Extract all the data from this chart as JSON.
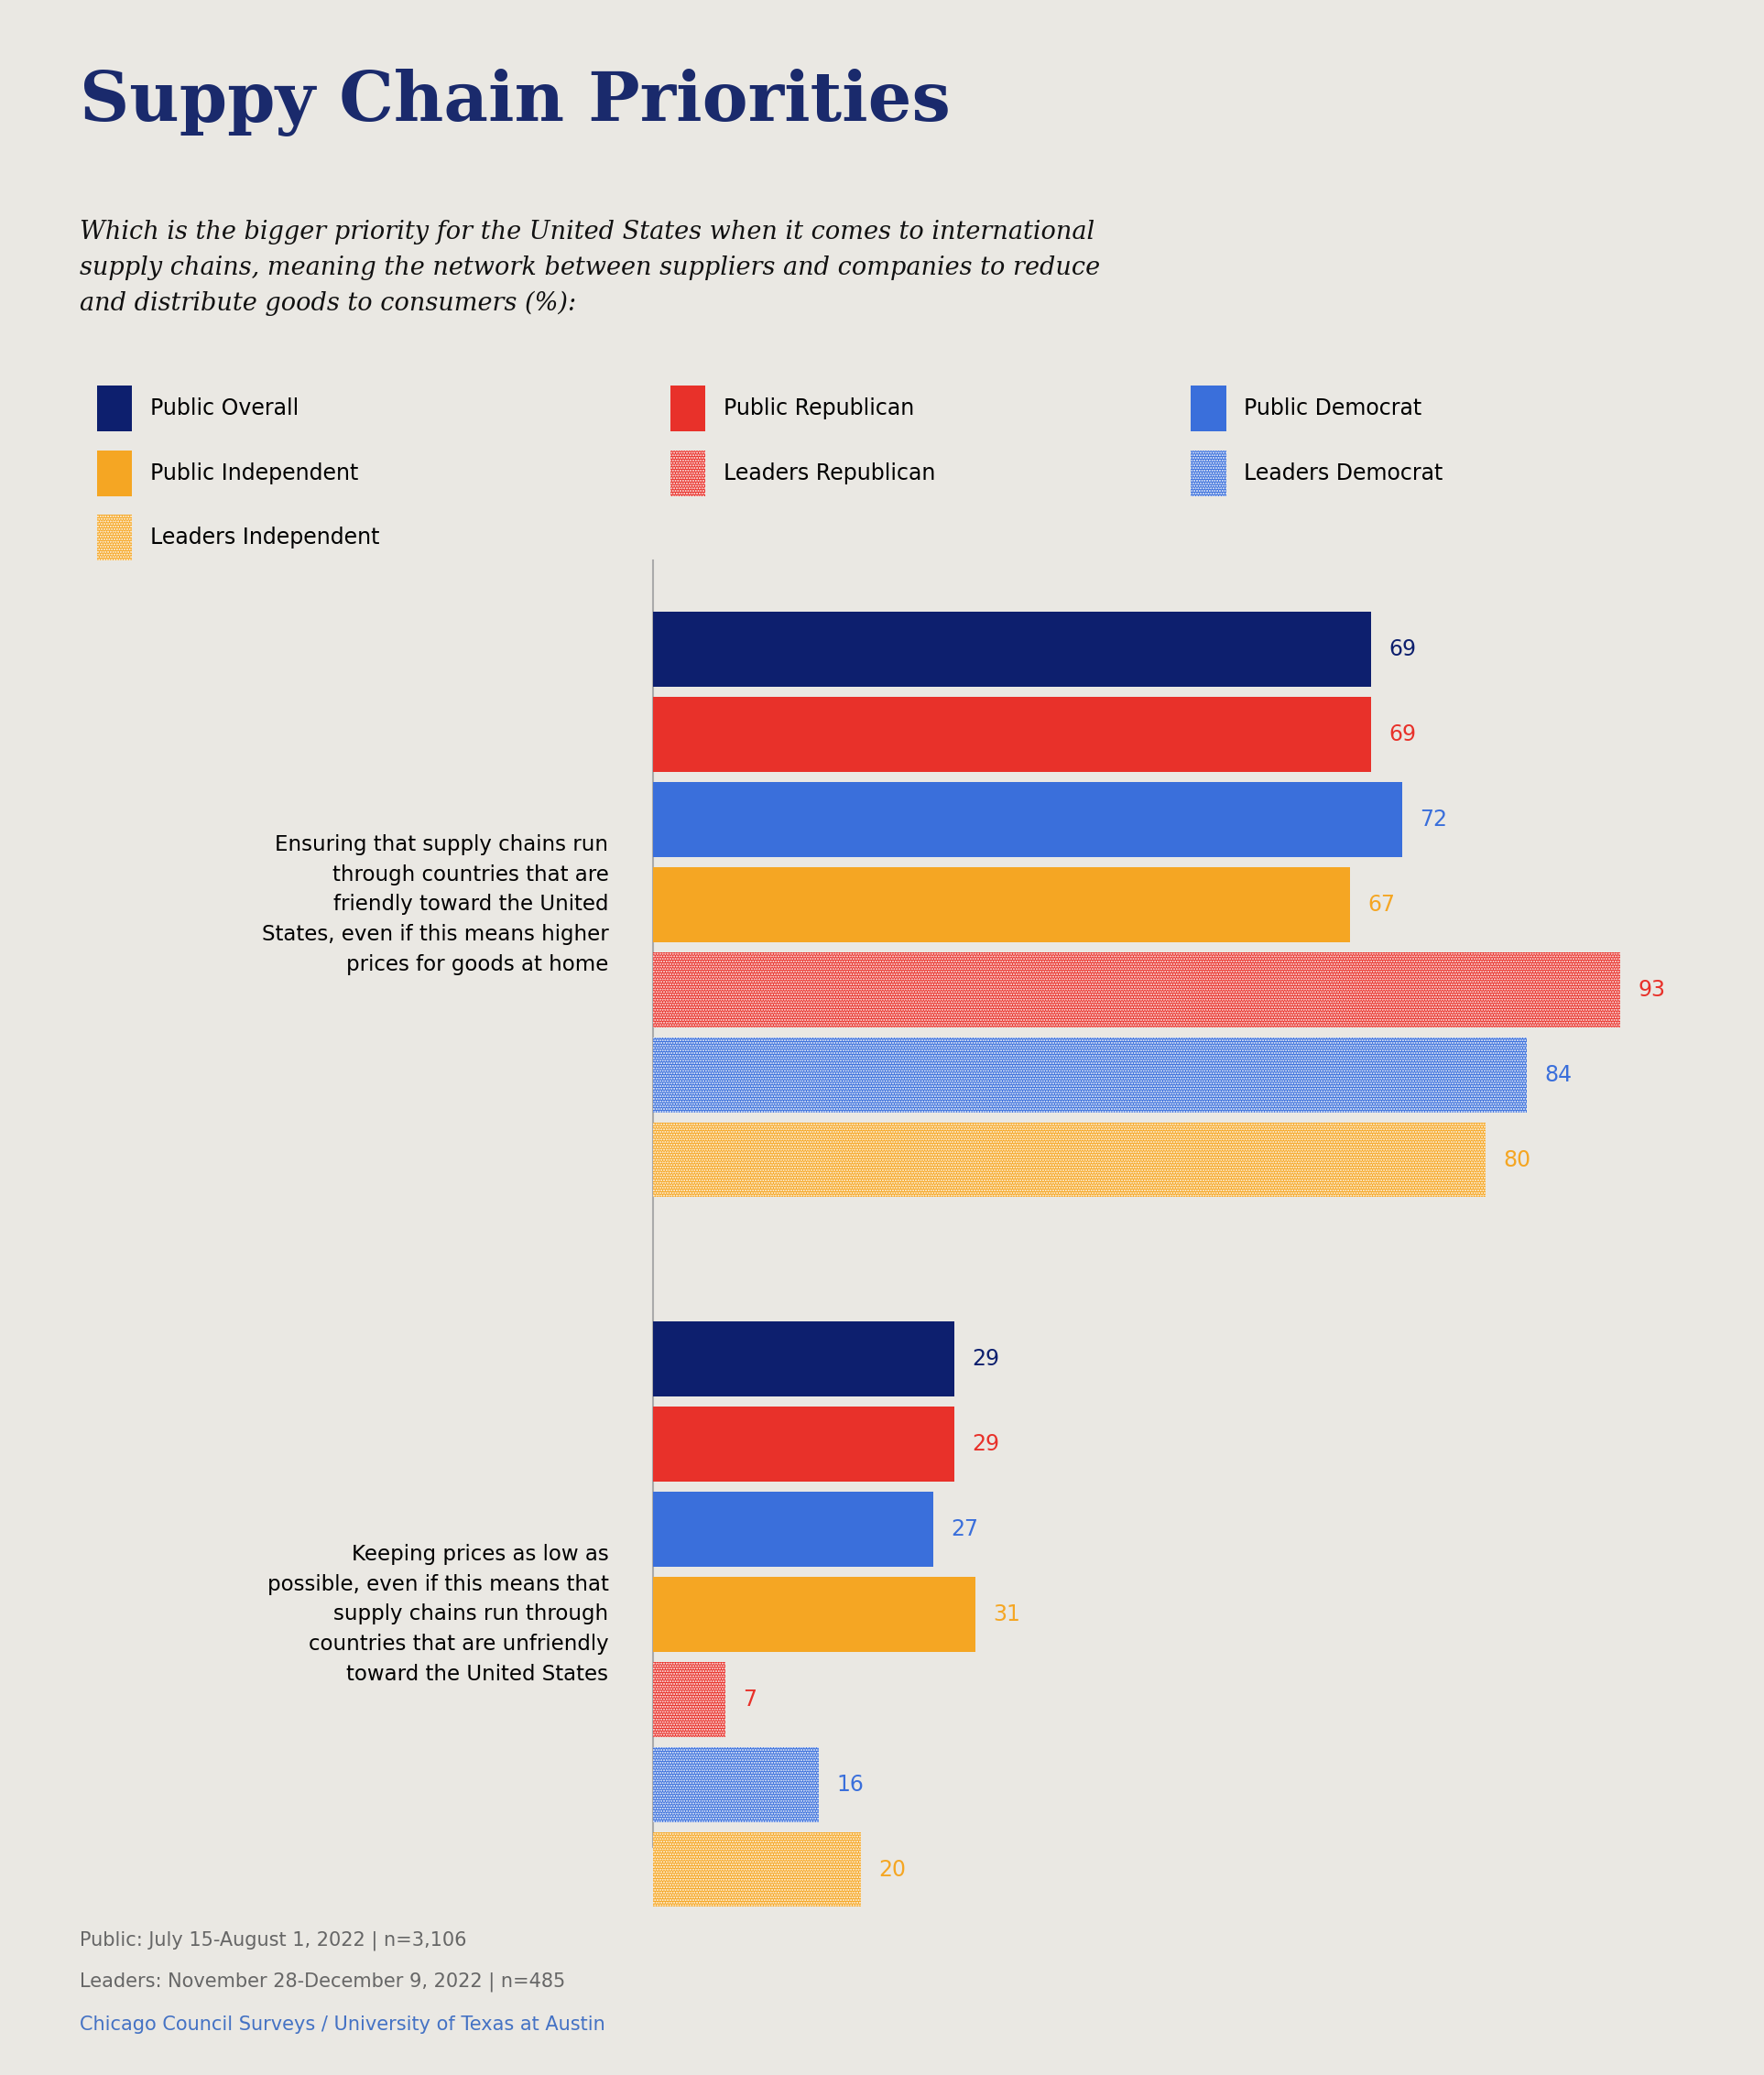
{
  "title": "Suppy Chain Priorities",
  "subtitle": "Which is the bigger priority for the United States when it comes to international\nsupply chains, meaning the network between suppliers and companies to reduce\nand distribute goods to consumers (%):",
  "background_color": "#eae8e3",
  "title_color": "#1a2a6c",
  "subtitle_color": "#111111",
  "categories": [
    "Public Overall",
    "Public Republican",
    "Public Democrat",
    "Public Independent",
    "Leaders Republican",
    "Leaders Democrat",
    "Leaders Independent"
  ],
  "bar_colors": [
    "#0d1f6e",
    "#e8312a",
    "#3a6fdb",
    "#f5a623",
    "#e8312a",
    "#3a6fdb",
    "#f5a623"
  ],
  "bar_hatched": [
    false,
    false,
    false,
    false,
    true,
    true,
    true
  ],
  "group1_label": "Ensuring that supply chains run\nthrough countries that are\nfriendly toward the United\nStates, even if this means higher\nprices for goods at home",
  "group1_values": [
    69,
    69,
    72,
    67,
    93,
    84,
    80
  ],
  "group2_label": "Keeping prices as low as\npossible, even if this means that\nsupply chains run through\ncountries that are unfriendly\ntoward the United States",
  "group2_values": [
    29,
    29,
    27,
    31,
    7,
    16,
    20
  ],
  "value_colors": [
    "#0d1f6e",
    "#e8312a",
    "#3a6fdb",
    "#f5a623",
    "#e8312a",
    "#3a6fdb",
    "#f5a623"
  ],
  "footer_line1": "Public: July 15-August 1, 2022 | n=3,106",
  "footer_line2": "Leaders: November 28-December 9, 2022 | n=485",
  "footer_line3": "Chicago Council Surveys / University of Texas at Austin",
  "footer_color": "#666666",
  "footer_color3": "#4472c4",
  "axis_line_color": "#aaaaaa",
  "xlim": [
    0,
    100
  ],
  "legend_items": [
    [
      "Public Overall",
      "#0d1f6e",
      false
    ],
    [
      "Public Republican",
      "#e8312a",
      false
    ],
    [
      "Public Democrat",
      "#3a6fdb",
      false
    ],
    [
      "Public Independent",
      "#f5a623",
      false
    ],
    [
      "Leaders Republican",
      "#e8312a",
      true
    ],
    [
      "Leaders Democrat",
      "#3a6fdb",
      true
    ],
    [
      "Leaders Independent",
      "#f5a623",
      true
    ]
  ],
  "legend_grid": [
    [
      0,
      1,
      2
    ],
    [
      3,
      4,
      5
    ],
    [
      6
    ]
  ]
}
